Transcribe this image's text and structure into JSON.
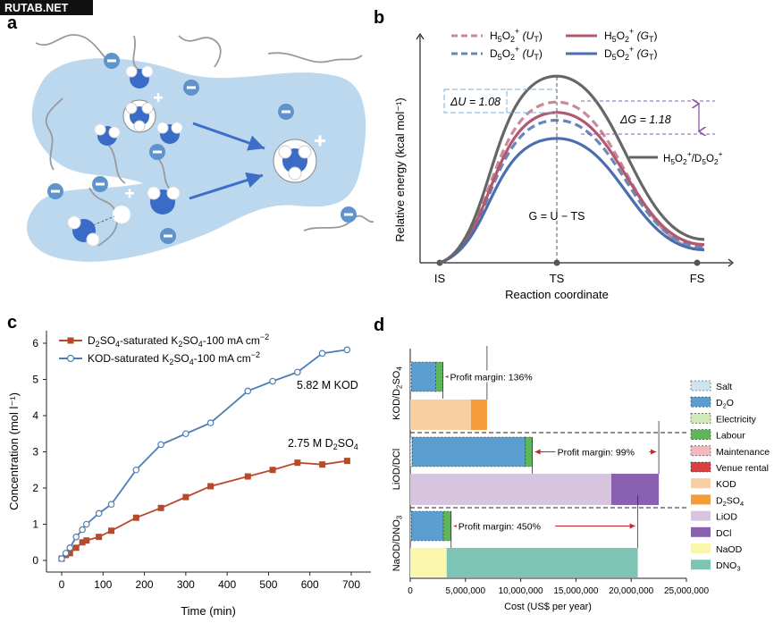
{
  "watermark": "RUTAB.NET",
  "panels": {
    "a": "a",
    "b": "b",
    "c": "c",
    "d": "d"
  },
  "colors": {
    "membrane": "#bcd8ef",
    "water_blue": "#3a6cc7",
    "arrow_blue": "#3d6fc9",
    "b_grey": "#666666",
    "b_pink": "#c98a9b",
    "b_rose": "#b4586e",
    "b_blue_dash": "#6a86b8",
    "b_blue": "#4b6eaf",
    "c_red": "#b84a2c",
    "c_blue": "#4d7fb6",
    "cost_salt": "#cfe2ef",
    "cost_d2o": "#5b9fd0",
    "cost_electricity": "#cfe9b8",
    "cost_labour": "#5fb55a",
    "cost_maintenance": "#f4b8bf",
    "cost_venue": "#d94040",
    "cost_kod": "#f7cfa0",
    "cost_d2so4": "#f59b3a",
    "cost_liod": "#d7c5df",
    "cost_dcl": "#8a60b0",
    "cost_naod": "#fbf7ad",
    "cost_dno3": "#7dc4b4"
  },
  "panel_a": {
    "icons": [
      "negative-charge-icon",
      "water-molecule-icon",
      "hydronium-icon",
      "positive-charge-icon",
      "arrow-icon"
    ]
  },
  "chart_data": [
    {
      "type": "line",
      "panel": "b",
      "xlabel": "Reaction coordinate",
      "ylabel": "Relative energy (kcal mol⁻¹)",
      "x_ticks": [
        "IS",
        "TS",
        "FS"
      ],
      "series": [
        {
          "name": "H5O2+ (UT)",
          "style": "dashed",
          "color": "#c98a9b",
          "values": [
            0,
            0.62,
            0.05
          ]
        },
        {
          "name": "D5O2+ (UT)",
          "style": "dashed",
          "color": "#6a86b8",
          "values": [
            0,
            0.55,
            0.06
          ]
        },
        {
          "name": "H5O2+ (GT)",
          "style": "solid",
          "color": "#b4586e",
          "values": [
            0,
            0.58,
            0.07
          ]
        },
        {
          "name": "D5O2+ (GT)",
          "style": "solid",
          "color": "#4b6eaf",
          "values": [
            0,
            0.48,
            0.05
          ]
        },
        {
          "name": "H5O2+/D5O2+",
          "style": "solid",
          "color": "#666666",
          "values": [
            0,
            0.72,
            0.09
          ]
        }
      ],
      "legend": {
        "row1_left": {
          "base": "H",
          "s1": "5",
          "mid": "O",
          "s2": "2",
          "sup": "+",
          "tail": " (U",
          "sub": "T",
          "end": ")"
        },
        "row1_right": {
          "base": "H",
          "s1": "5",
          "mid": "O",
          "s2": "2",
          "sup": "+",
          "tail": " (G",
          "sub": "T",
          "end": ")"
        },
        "row2_left": {
          "base": "D",
          "s1": "5",
          "mid": "O",
          "s2": "2",
          "sup": "+",
          "tail": " (U",
          "sub": "T",
          "end": ")"
        },
        "row2_right": {
          "base": "D",
          "s1": "5",
          "mid": "O",
          "s2": "2",
          "sup": "+",
          "tail": " (G",
          "sub": "T",
          "end": ")"
        },
        "grey": "H5O2+/D5O2+"
      },
      "annotations": {
        "delta_u_label": "ΔU = 1.08",
        "delta_g_label": "ΔG = 1.18",
        "g_eq": "G = U − TS"
      }
    },
    {
      "type": "line",
      "panel": "c",
      "xlabel": "Time (min)",
      "ylabel": "Concentration (mol l⁻¹)",
      "xlim": [
        0,
        700
      ],
      "ylim": [
        0,
        6
      ],
      "x_ticks": [
        0,
        100,
        200,
        300,
        400,
        500,
        600,
        700
      ],
      "y_ticks": [
        0,
        1,
        2,
        3,
        4,
        5,
        6
      ],
      "series": [
        {
          "name": "D2SO4-saturated K2SO4-100 mA cm−2",
          "marker": "square",
          "x": [
            0,
            10,
            20,
            35,
            50,
            60,
            90,
            120,
            180,
            240,
            300,
            360,
            450,
            510,
            570,
            630,
            690
          ],
          "y": [
            0.05,
            0.15,
            0.2,
            0.35,
            0.5,
            0.55,
            0.65,
            0.82,
            1.18,
            1.45,
            1.75,
            2.05,
            2.32,
            2.5,
            2.7,
            2.65,
            2.75
          ]
        },
        {
          "name": "KOD-saturated K2SO4-100 mA cm−2",
          "marker": "circle",
          "x": [
            0,
            10,
            20,
            35,
            50,
            60,
            90,
            120,
            180,
            240,
            300,
            360,
            450,
            510,
            570,
            630,
            690
          ],
          "y": [
            0.05,
            0.2,
            0.35,
            0.65,
            0.85,
            1.0,
            1.3,
            1.55,
            2.5,
            3.2,
            3.5,
            3.8,
            4.68,
            4.95,
            5.2,
            5.72,
            5.82
          ]
        }
      ],
      "legend_labels": [
        {
          "pre": "D",
          "s1": "2",
          "mid": "SO",
          "s2": "4",
          "txt": "-saturated K",
          "s3": "2",
          "mid2": "SO",
          "s4": "4",
          "end": "-100 mA cm",
          "sup": "−2"
        },
        {
          "pre": "KOD-saturated K",
          "s1": "2",
          "mid": "SO",
          "s2": "4",
          "end": "-100 mA cm",
          "sup": "−2"
        }
      ],
      "annotations": {
        "kod_end": "5.82 M KOD",
        "d2so4_end": {
          "pre": "2.75 M D",
          "s1": "2",
          "mid": "SO",
          "s2": "4"
        }
      }
    },
    {
      "type": "bar",
      "panel": "d",
      "orientation": "horizontal",
      "xlabel": "Cost (US$ per year)",
      "xlim": [
        0,
        25000000
      ],
      "x_ticks": [
        "0",
        "5,000,000",
        "10,000,000",
        "15,000,000",
        "20,000,000",
        "25,000,000"
      ],
      "groups": [
        {
          "label": {
            "pre": "KOD/D",
            "s1": "2",
            "mid": "SO",
            "s2": "4"
          },
          "profit_margin": "Profit margin: 136%",
          "cost_bar": [
            {
              "item": "Salt",
              "value": 100000
            },
            {
              "item": "D2O",
              "value": 2200000
            },
            {
              "item": "Labour",
              "value": 650000
            }
          ],
          "revenue_bar": [
            {
              "item": "KOD",
              "value": 5500000
            },
            {
              "item": "D2SO4",
              "value": 1450000
            }
          ]
        },
        {
          "label": {
            "pre": "LiOD/DCl"
          },
          "profit_margin": "Profit margin: 99%",
          "cost_bar": [
            {
              "item": "Salt",
              "value": 200000
            },
            {
              "item": "D2O",
              "value": 10200000
            },
            {
              "item": "Labour",
              "value": 650000
            }
          ],
          "revenue_bar": [
            {
              "item": "LiOD",
              "value": 18200000
            },
            {
              "item": "DCl",
              "value": 4300000
            }
          ]
        },
        {
          "label": {
            "pre": "NaOD/DNO",
            "s1": "3"
          },
          "profit_margin": "Profit margin: 450%",
          "cost_bar": [
            {
              "item": "Salt",
              "value": 100000
            },
            {
              "item": "D2O",
              "value": 2900000
            },
            {
              "item": "Labour",
              "value": 700000
            }
          ],
          "revenue_bar": [
            {
              "item": "NaOD",
              "value": 3300000
            },
            {
              "item": "DNO3",
              "value": 17300000
            }
          ]
        }
      ],
      "legend": [
        {
          "key": "salt",
          "label": "Salt",
          "hatch": true
        },
        {
          "key": "d2o",
          "label": "D2O",
          "hatch": true
        },
        {
          "key": "electricity",
          "label": "Electricity",
          "hatch": true
        },
        {
          "key": "labour",
          "label": "Labour",
          "hatch": true
        },
        {
          "key": "maintenance",
          "label": "Maintenance",
          "hatch": true
        },
        {
          "key": "venue",
          "label": "Venue rental",
          "hatch": true
        },
        {
          "key": "kod",
          "label": "KOD",
          "hatch": false
        },
        {
          "key": "d2so4",
          "label": "D2SO4",
          "hatch": false
        },
        {
          "key": "liod",
          "label": "LiOD",
          "hatch": false
        },
        {
          "key": "dcl",
          "label": "DCl",
          "hatch": false
        },
        {
          "key": "naod",
          "label": "NaOD",
          "hatch": false
        },
        {
          "key": "dno3",
          "label": "DNO3",
          "hatch": false
        }
      ]
    }
  ]
}
